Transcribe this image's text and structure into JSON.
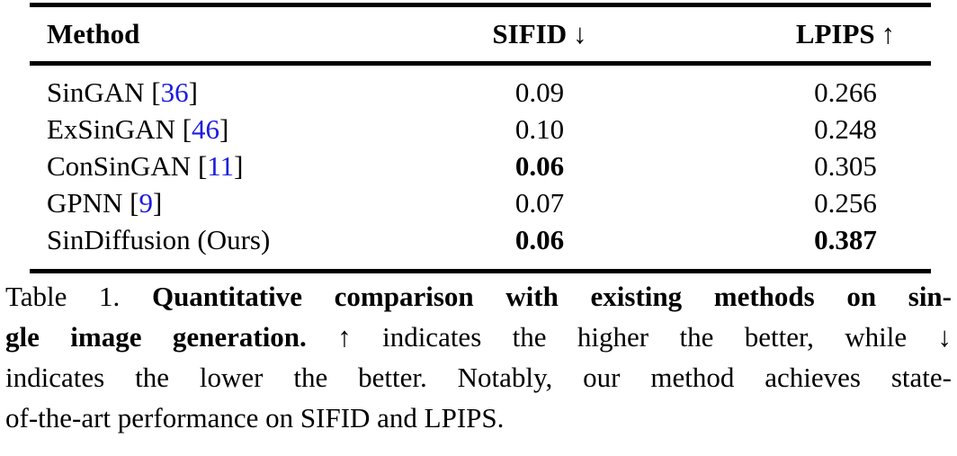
{
  "page": {
    "background": "#ffffff",
    "text_color": "#000000",
    "cite_color": "#1b1be1"
  },
  "table": {
    "columns": [
      {
        "label": "Method",
        "arrow": ""
      },
      {
        "label": "SIFID",
        "arrow": "↓"
      },
      {
        "label": "LPIPS",
        "arrow": "↑"
      }
    ],
    "citation_brackets": [
      "[",
      "]"
    ],
    "rows": [
      {
        "method": "SinGAN",
        "cite": "36",
        "sifid": "0.09",
        "sifid_bold": false,
        "lpips": "0.266",
        "lpips_bold": false
      },
      {
        "method": "ExSinGAN",
        "cite": "46",
        "sifid": "0.10",
        "sifid_bold": false,
        "lpips": "0.248",
        "lpips_bold": false
      },
      {
        "method": "ConSinGAN",
        "cite": "11",
        "sifid": "0.06",
        "sifid_bold": true,
        "lpips": "0.305",
        "lpips_bold": false
      },
      {
        "method": "GPNN",
        "cite": "9",
        "sifid": "0.07",
        "sifid_bold": false,
        "lpips": "0.256",
        "lpips_bold": false
      },
      {
        "method": "SinDiffusion (Ours)",
        "cite": null,
        "sifid": "0.06",
        "sifid_bold": true,
        "lpips": "0.387",
        "lpips_bold": true
      }
    ]
  },
  "chart_data": {
    "type": "table",
    "title": "Table 1. Quantitative comparison with existing methods on single image generation.",
    "columns": [
      "Method",
      "SIFID ↓",
      "LPIPS ↑"
    ],
    "rows": [
      [
        "SinGAN [36]",
        0.09,
        0.266
      ],
      [
        "ExSinGAN [46]",
        0.1,
        0.248
      ],
      [
        "ConSinGAN [11]",
        0.06,
        0.305
      ],
      [
        "GPNN [9]",
        0.07,
        0.256
      ],
      [
        "SinDiffusion (Ours)",
        0.06,
        0.387
      ]
    ]
  },
  "caption": {
    "lines": [
      {
        "justify": true,
        "segments": [
          {
            "text": "Table 1. ",
            "bold": false
          },
          {
            "text": "Quantitative comparison with existing methods on sin-",
            "bold": true
          }
        ]
      },
      {
        "justify": true,
        "segments": [
          {
            "text": "gle image generation.",
            "bold": true
          },
          {
            "text": " ↑ indicates the higher the better, while ↓",
            "bold": false
          }
        ]
      },
      {
        "justify": true,
        "segments": [
          {
            "text": "indicates the lower the better. Notably, our method achieves state-",
            "bold": false
          }
        ]
      },
      {
        "justify": false,
        "segments": [
          {
            "text": "of-the-art performance on SIFID and LPIPS.",
            "bold": false
          }
        ]
      }
    ]
  }
}
